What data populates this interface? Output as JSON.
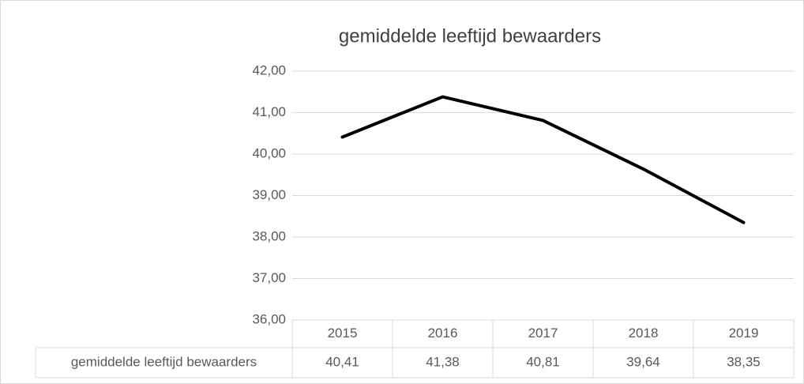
{
  "chart_data": {
    "type": "line",
    "title": "gemiddelde leeftijd bewaarders",
    "categories": [
      "2015",
      "2016",
      "2017",
      "2018",
      "2019"
    ],
    "series": [
      {
        "name": "gemiddelde leeftijd bewaarders",
        "color": "#000000",
        "values": [
          40.41,
          41.38,
          40.81,
          39.64,
          38.35
        ],
        "value_labels": [
          "40,41",
          "41,38",
          "40,81",
          "39,64",
          "38,35"
        ]
      }
    ],
    "ylim": [
      36,
      42
    ],
    "yticks": [
      {
        "value": 36,
        "label": "36,00"
      },
      {
        "value": 37,
        "label": "37,00"
      },
      {
        "value": 38,
        "label": "38,00"
      },
      {
        "value": 39,
        "label": "39,00"
      },
      {
        "value": 40,
        "label": "40,00"
      },
      {
        "value": 41,
        "label": "41,00"
      },
      {
        "value": 42,
        "label": "42,00"
      }
    ],
    "grid": true
  }
}
